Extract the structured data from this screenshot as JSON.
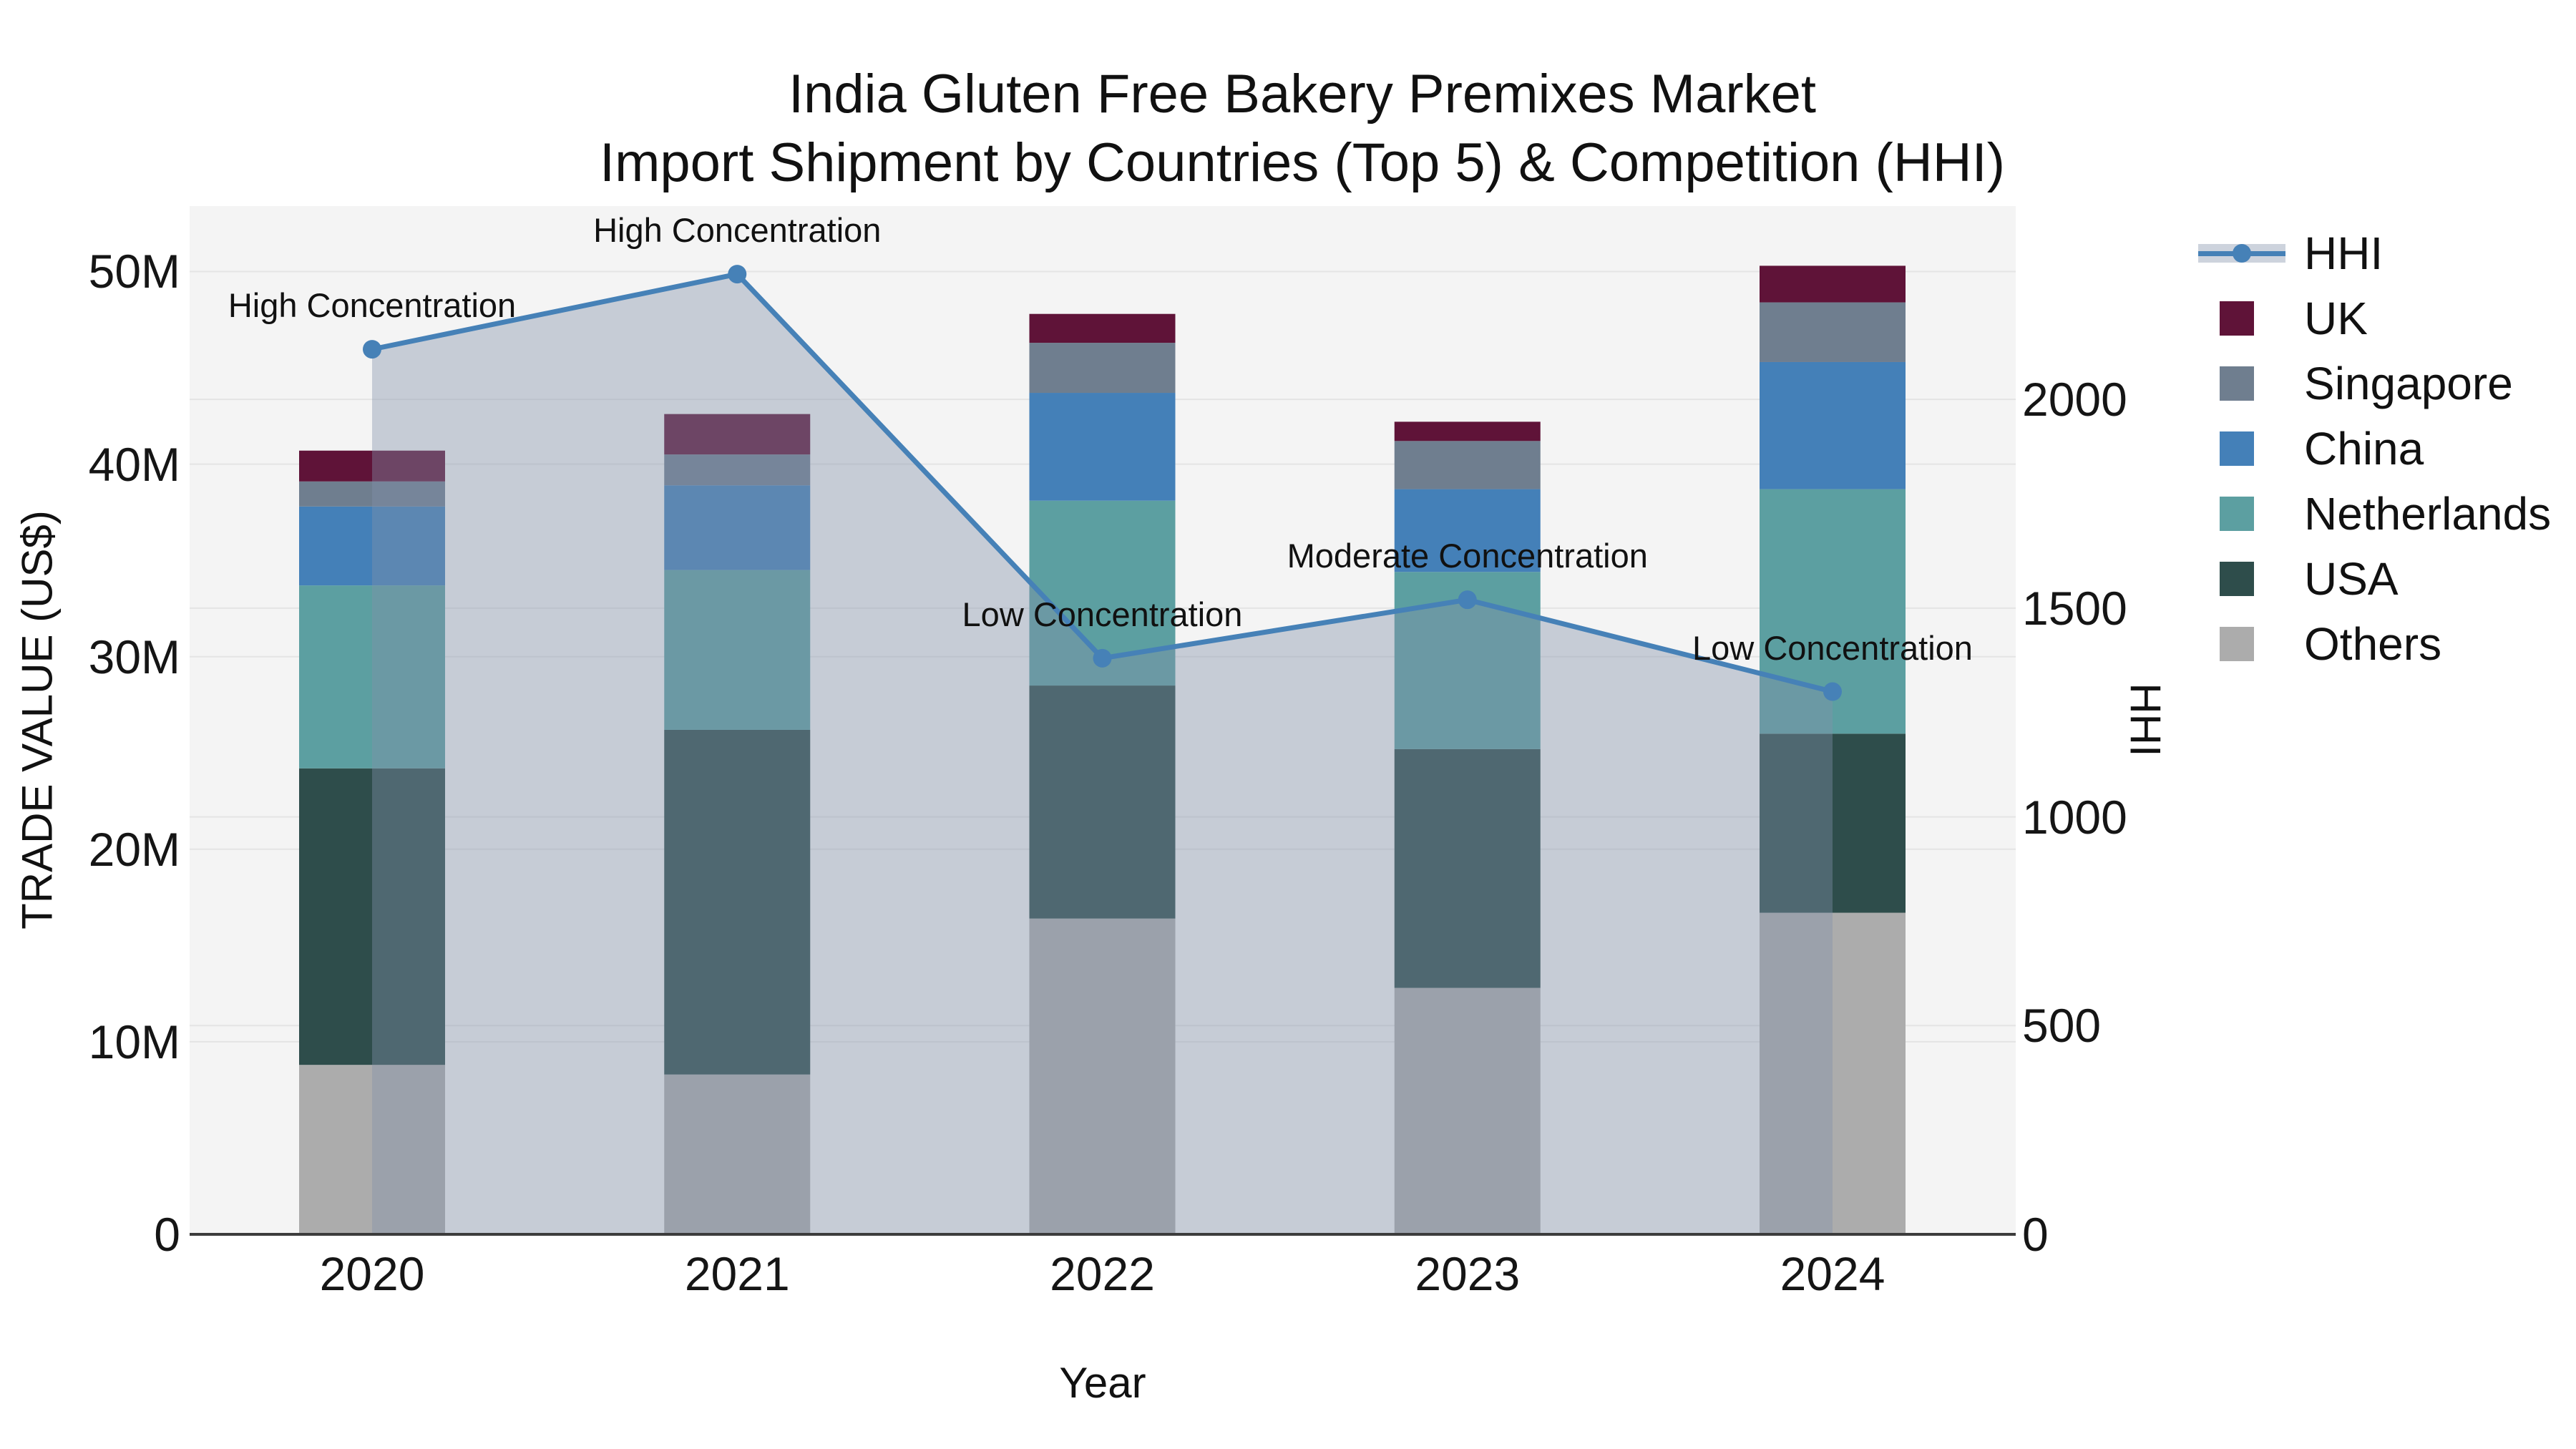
{
  "title": {
    "line1": "India Gluten Free Bakery Premixes Market",
    "line2": "Import Shipment by Countries (Top 5) & Competition (HHI)"
  },
  "axes": {
    "x": {
      "title": "Year",
      "categories": [
        "2020",
        "2021",
        "2022",
        "2023",
        "2024"
      ]
    },
    "y_left": {
      "title": "TRADE VALUE (US$)",
      "tick_labels": [
        "0",
        "10M",
        "20M",
        "30M",
        "40M",
        "50M"
      ],
      "tick_values_millions": [
        0,
        10,
        20,
        30,
        40,
        50
      ],
      "max_millions": 53.4
    },
    "y_right": {
      "title": "HHI",
      "tick_labels": [
        "0",
        "500",
        "1000",
        "1500",
        "2000"
      ],
      "tick_values": [
        0,
        500,
        1000,
        1500,
        2000
      ],
      "max": 2463
    }
  },
  "chart_data": {
    "type": "bar+line",
    "title": "India Gluten Free Bakery Premixes Market — Import Shipment by Countries (Top 5) & Competition (HHI)",
    "categories": [
      "2020",
      "2021",
      "2022",
      "2023",
      "2024"
    ],
    "bar_unit": "million US$",
    "stack_order": "bottom to top",
    "series": [
      {
        "name": "Others",
        "color": "#ACACAC",
        "values": [
          8.8,
          8.3,
          16.4,
          12.8,
          16.7
        ]
      },
      {
        "name": "USA",
        "color": "#2E4D4B",
        "values": [
          15.4,
          17.9,
          12.1,
          12.4,
          9.3
        ]
      },
      {
        "name": "Netherlands",
        "color": "#5C9FA1",
        "values": [
          9.5,
          8.3,
          9.6,
          9.2,
          12.7
        ]
      },
      {
        "name": "China",
        "color": "#4480B8",
        "values": [
          4.1,
          4.4,
          5.6,
          4.3,
          6.6
        ]
      },
      {
        "name": "Singapore",
        "color": "#6F7E8F",
        "values": [
          1.3,
          1.6,
          2.6,
          2.5,
          3.1
        ]
      },
      {
        "name": "UK",
        "color": "#5F1338",
        "values": [
          1.6,
          2.1,
          1.5,
          1.0,
          1.9
        ]
      }
    ],
    "bar_totals_millions": [
      40.7,
      42.6,
      47.8,
      42.2,
      50.3
    ],
    "line": {
      "name": "HHI",
      "axis": "right",
      "color": "#4681B7",
      "area_fill_color": "rgba(130,145,170,0.4)",
      "values": [
        2120,
        2300,
        1380,
        1520,
        1300
      ]
    },
    "annotations": [
      {
        "category": "2020",
        "text": "High Concentration"
      },
      {
        "category": "2021",
        "text": "High Concentration"
      },
      {
        "category": "2022",
        "text": "Low Concentration"
      },
      {
        "category": "2023",
        "text": "Moderate Concentration"
      },
      {
        "category": "2024",
        "text": "Low Concentration"
      }
    ],
    "layout_hints": {
      "plot_background": "#F4F4F4",
      "gridline_color": "#E4E4E4",
      "zero_line_color": "#3C3C3C",
      "grid": true,
      "legend_position": "right"
    }
  },
  "legend": {
    "items": [
      {
        "label": "HHI",
        "type": "line",
        "color": "#4681B7"
      },
      {
        "label": "UK",
        "type": "square",
        "color": "#5F1338"
      },
      {
        "label": "Singapore",
        "type": "square",
        "color": "#6F7E8F"
      },
      {
        "label": "China",
        "type": "square",
        "color": "#4480B8"
      },
      {
        "label": "Netherlands",
        "type": "square",
        "color": "#5C9FA1"
      },
      {
        "label": "USA",
        "type": "square",
        "color": "#2E4D4B"
      },
      {
        "label": "Others",
        "type": "square",
        "color": "#ACACAC"
      }
    ]
  }
}
